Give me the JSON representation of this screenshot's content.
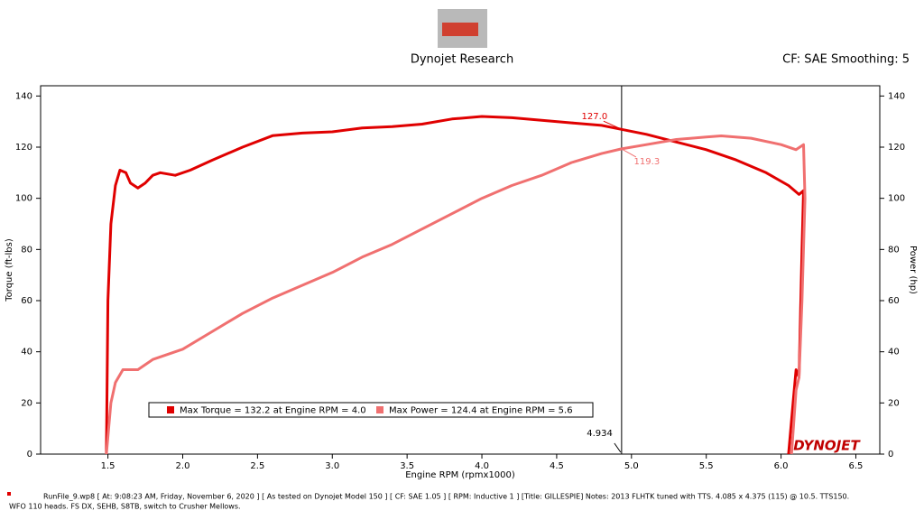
{
  "header": {
    "title": "Dynojet Research",
    "right": "CF: SAE Smoothing: 5"
  },
  "footer_lines": [
    "RunFile_9.wp8  [ At:  9:08:23 AM, Friday, November 6, 2020 ]  [ As tested on Dynojet Model 150 ]  [ CF: SAE 1.05 ]  [ RPM: Inductive 1 ]  [Title: GILLESPIE]   Notes:  2013  FLHTK tuned with TTS. 4.085 x 4.375 (115) @ 10.5. TTS150.",
    "WFO 110 heads. FS DX, SEHB, S8TB, switch to Crusher Mellows."
  ],
  "logo": "DYNOJET",
  "chart_data": {
    "type": "line",
    "xlabel": "Engine RPM (rpmx1000)",
    "ylabel": "Torque (ft-lbs)",
    "y2label": "Power (hp)",
    "xlim": [
      1.05,
      6.66
    ],
    "ylim": [
      0,
      144
    ],
    "y2lim": [
      0,
      144
    ],
    "xticks": [
      {
        "value": 1.5,
        "label": "1.5"
      },
      {
        "value": 2,
        "label": "2.0"
      },
      {
        "value": 2.5,
        "label": "2.5"
      },
      {
        "value": 3,
        "label": "3.0"
      },
      {
        "value": 3.5,
        "label": "3.5"
      },
      {
        "value": 4,
        "label": "4.0"
      },
      {
        "value": 4.5,
        "label": "4.5"
      },
      {
        "value": 5,
        "label": "5.0"
      },
      {
        "value": 5.5,
        "label": "5.5"
      },
      {
        "value": 6,
        "label": "6.0"
      },
      {
        "value": 6.5,
        "label": "6.5"
      }
    ],
    "yticks": [
      0,
      20,
      40,
      60,
      80,
      100,
      120,
      140
    ],
    "y2ticks": [
      0,
      20,
      40,
      60,
      80,
      100,
      120,
      140
    ],
    "cursor_x": 4.934,
    "series": [
      {
        "name": "Max Torque = 132.2 at Engine RPM = 4.0",
        "color": "#e00000",
        "cursor_value": 127.0,
        "cursor_label": "127.0",
        "x": [
          1.49,
          1.5,
          1.52,
          1.55,
          1.58,
          1.62,
          1.65,
          1.7,
          1.75,
          1.8,
          1.85,
          1.95,
          2.05,
          2.2,
          2.4,
          2.6,
          2.8,
          3.0,
          3.2,
          3.4,
          3.6,
          3.8,
          4.0,
          4.2,
          4.4,
          4.6,
          4.8,
          4.93,
          5.1,
          5.3,
          5.5,
          5.7,
          5.9,
          6.05,
          6.12,
          6.15,
          6.14,
          6.12,
          6.1,
          6.08,
          6.05
        ],
        "values": [
          0,
          60,
          90,
          105,
          111,
          110,
          106,
          104,
          106,
          109,
          110,
          109,
          111,
          115,
          120,
          124.5,
          125.5,
          126,
          127.5,
          128,
          129,
          131,
          132,
          131.5,
          130.5,
          129.5,
          128.5,
          127,
          125,
          122,
          119,
          115,
          110,
          105,
          101.5,
          103,
          80,
          30,
          33,
          20,
          0
        ]
      },
      {
        "name": "Max Power = 124.4 at Engine RPM = 5.6",
        "color": "#f07070",
        "axis": "y2",
        "cursor_value": 119.3,
        "x": [
          1.49,
          1.52,
          1.55,
          1.6,
          1.7,
          1.8,
          2.0,
          2.2,
          2.4,
          2.6,
          2.8,
          3.0,
          3.2,
          3.4,
          3.6,
          3.8,
          4.0,
          4.2,
          4.4,
          4.6,
          4.8,
          4.93,
          5.1,
          5.3,
          5.5,
          5.6,
          5.8,
          6.0,
          6.1,
          6.15,
          6.16,
          6.14,
          6.12,
          6.1,
          6.07
        ],
        "values": [
          0,
          20,
          28,
          33,
          33,
          37,
          41,
          48,
          55,
          61,
          66,
          71,
          77,
          82,
          88,
          94,
          100,
          105,
          109,
          114,
          117.5,
          119.3,
          121,
          123,
          124,
          124.4,
          123.5,
          121,
          119,
          121,
          100,
          60,
          30,
          25,
          0
        ]
      }
    ]
  }
}
